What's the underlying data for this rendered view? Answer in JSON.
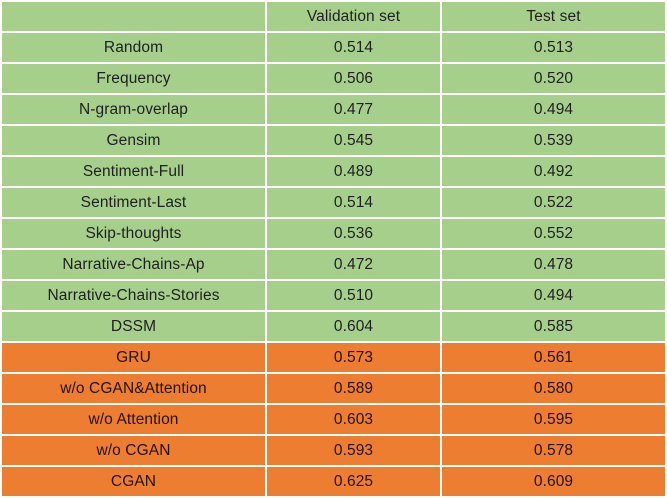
{
  "colors": {
    "baseline_row": "#a6cf8c",
    "model_row": "#ed7d31",
    "gridline": "#ffffff",
    "text": "#1f1f1f"
  },
  "chart_data": {
    "type": "table",
    "title": "",
    "columns": [
      "",
      "Validation set",
      "Test set"
    ],
    "rows": [
      {
        "label": "Random",
        "validation": "0.514",
        "test": "0.513",
        "group": "baseline"
      },
      {
        "label": "Frequency",
        "validation": "0.506",
        "test": "0.520",
        "group": "baseline"
      },
      {
        "label": "N-gram-overlap",
        "validation": "0.477",
        "test": "0.494",
        "group": "baseline"
      },
      {
        "label": "Gensim",
        "validation": "0.545",
        "test": "0.539",
        "group": "baseline"
      },
      {
        "label": "Sentiment-Full",
        "validation": "0.489",
        "test": "0.492",
        "group": "baseline"
      },
      {
        "label": "Sentiment-Last",
        "validation": "0.514",
        "test": "0.522",
        "group": "baseline"
      },
      {
        "label": "Skip-thoughts",
        "validation": "0.536",
        "test": "0.552",
        "group": "baseline"
      },
      {
        "label": "Narrative-Chains-Ap",
        "validation": "0.472",
        "test": "0.478",
        "group": "baseline"
      },
      {
        "label": "Narrative-Chains-Stories",
        "validation": "0.510",
        "test": "0.494",
        "group": "baseline"
      },
      {
        "label": "DSSM",
        "validation": "0.604",
        "test": "0.585",
        "group": "baseline"
      },
      {
        "label": "GRU",
        "validation": "0.573",
        "test": "0.561",
        "group": "model"
      },
      {
        "label": "w/o CGAN&Attention",
        "validation": "0.589",
        "test": "0.580",
        "group": "model"
      },
      {
        "label": "w/o Attention",
        "validation": "0.603",
        "test": "0.595",
        "group": "model"
      },
      {
        "label": "w/o CGAN",
        "validation": "0.593",
        "test": "0.578",
        "group": "model"
      },
      {
        "label": "CGAN",
        "validation": "0.625",
        "test": "0.609",
        "group": "model"
      }
    ]
  }
}
